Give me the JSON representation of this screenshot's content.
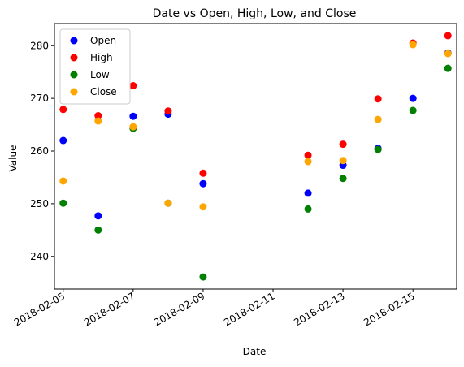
{
  "chart_data": {
    "type": "scatter",
    "title": "Date vs Open, High, Low, and Close",
    "xlabel": "Date",
    "ylabel": "Value",
    "xlim": [
      "2018-02-04T18:00",
      "2018-02-16T06:00"
    ],
    "ylim": [
      233.8,
      284.2
    ],
    "x_ticks": [
      "2018-02-05",
      "2018-02-07",
      "2018-02-09",
      "2018-02-11",
      "2018-02-13",
      "2018-02-15"
    ],
    "y_ticks": [
      240,
      250,
      260,
      270,
      280
    ],
    "grid": false,
    "legend_position": "top-left",
    "x": [
      "2018-02-05",
      "2018-02-06",
      "2018-02-07",
      "2018-02-08",
      "2018-02-09",
      "2018-02-12",
      "2018-02-13",
      "2018-02-14",
      "2018-02-15",
      "2018-02-16"
    ],
    "series": [
      {
        "name": "Open",
        "color": "#0000ff",
        "values": [
          262.0,
          247.7,
          266.6,
          267.0,
          253.8,
          252.0,
          257.3,
          260.5,
          270.0,
          278.6
        ]
      },
      {
        "name": "High",
        "color": "#ff0000",
        "values": [
          267.9,
          266.7,
          272.4,
          267.6,
          255.8,
          259.2,
          261.3,
          269.9,
          280.5,
          281.9
        ]
      },
      {
        "name": "Low",
        "color": "#008000",
        "values": [
          250.1,
          245.0,
          264.3,
          250.1,
          236.1,
          249.0,
          254.8,
          260.3,
          267.7,
          275.7
        ]
      },
      {
        "name": "Close",
        "color": "#ffa500",
        "values": [
          254.3,
          265.7,
          264.6,
          250.1,
          249.4,
          258.0,
          258.2,
          266.0,
          280.2,
          278.5
        ]
      }
    ]
  }
}
